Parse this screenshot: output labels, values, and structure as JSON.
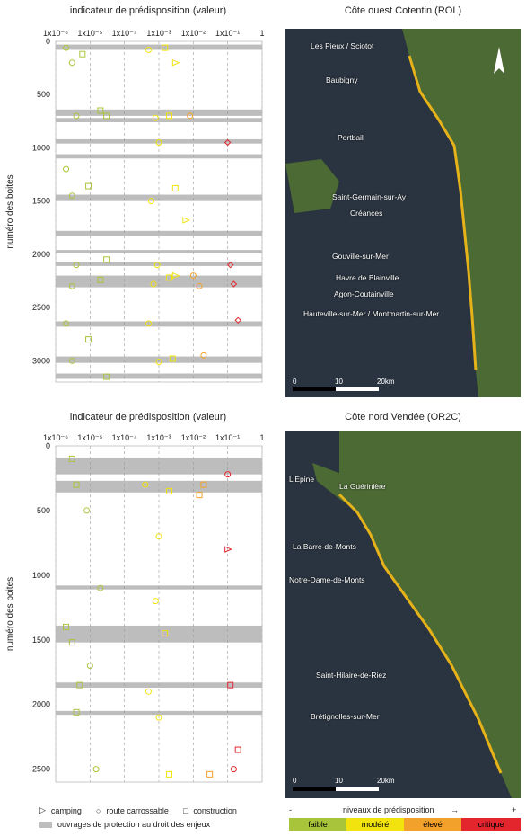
{
  "titles": {
    "chart_top": "indicateur de prédisposition (valeur)",
    "map_top": "Côte ouest Cotentin (ROL)",
    "chart_bottom": "indicateur de prédisposition (valeur)",
    "map_bottom": "Côte nord Vendée (OR2C)"
  },
  "axis": {
    "ylabel": "numéro des boites",
    "x_ticks": [
      "1x10⁻⁶",
      "1x10⁻⁵",
      "1x10⁻⁴",
      "1x10⁻³",
      "1x10⁻²",
      "1x10⁻¹",
      "1"
    ]
  },
  "chart_data": [
    {
      "type": "scatter",
      "title": "indicateur de prédisposition (valeur)",
      "xscale": "log",
      "xlim": [
        1e-06,
        1
      ],
      "ylim": [
        0,
        3200
      ],
      "y_inverted": true,
      "yticks": [
        0,
        500,
        1000,
        1500,
        2000,
        2500,
        3000
      ],
      "grid": "vertical dashed",
      "protection_bands": [
        [
          30,
          80
        ],
        [
          640,
          700
        ],
        [
          720,
          760
        ],
        [
          920,
          960
        ],
        [
          1060,
          1100
        ],
        [
          1440,
          1500
        ],
        [
          1780,
          1830
        ],
        [
          1960,
          1990
        ],
        [
          2070,
          2110
        ],
        [
          2200,
          2310
        ],
        [
          2630,
          2680
        ],
        [
          2960,
          3020
        ],
        [
          3120,
          3170
        ]
      ],
      "groups": [
        {
          "symbol": "circle",
          "level": "faible",
          "points": [
            [
              2e-06,
              60
            ],
            [
              3e-06,
              200
            ],
            [
              4e-06,
              700
            ],
            [
              2e-06,
              1200
            ],
            [
              3e-06,
              1450
            ],
            [
              4e-06,
              2100
            ],
            [
              3e-06,
              2300
            ],
            [
              2e-06,
              2650
            ],
            [
              3e-06,
              3000
            ]
          ]
        },
        {
          "symbol": "square",
          "level": "faible",
          "points": [
            [
              6e-06,
              120
            ],
            [
              2e-05,
              650
            ],
            [
              3e-05,
              700
            ],
            [
              9e-06,
              1360
            ],
            [
              3e-05,
              2050
            ],
            [
              2e-05,
              2240
            ],
            [
              9e-06,
              2800
            ],
            [
              3e-05,
              3150
            ]
          ]
        },
        {
          "symbol": "circle",
          "level": "modéré",
          "points": [
            [
              0.0005,
              80
            ],
            [
              0.0008,
              720
            ],
            [
              0.001,
              950
            ],
            [
              0.0006,
              1500
            ],
            [
              0.0009,
              2100
            ],
            [
              0.0007,
              2280
            ],
            [
              0.0005,
              2650
            ],
            [
              0.001,
              3010
            ]
          ]
        },
        {
          "symbol": "square",
          "level": "modéré",
          "points": [
            [
              0.0015,
              60
            ],
            [
              0.002,
              700
            ],
            [
              0.003,
              1380
            ],
            [
              0.002,
              2220
            ],
            [
              0.0025,
              2980
            ]
          ]
        },
        {
          "symbol": "circle",
          "level": "élevé",
          "points": [
            [
              0.008,
              700
            ],
            [
              0.01,
              2200
            ],
            [
              0.015,
              2300
            ],
            [
              0.02,
              2950
            ]
          ]
        },
        {
          "symbol": "diamond",
          "level": "critique",
          "points": [
            [
              0.1,
              950
            ],
            [
              0.12,
              2100
            ],
            [
              0.15,
              2280
            ],
            [
              0.2,
              2620
            ]
          ]
        },
        {
          "symbol": "triangle",
          "level": "modéré",
          "points": [
            [
              0.003,
              200
            ],
            [
              0.006,
              1680
            ],
            [
              0.003,
              2200
            ]
          ]
        }
      ]
    },
    {
      "type": "scatter",
      "title": "indicateur de prédisposition (valeur)",
      "xscale": "log",
      "xlim": [
        1e-06,
        1
      ],
      "ylim": [
        0,
        2600
      ],
      "y_inverted": true,
      "yticks": [
        0,
        500,
        1000,
        1500,
        2000,
        2500
      ],
      "grid": "vertical dashed",
      "protection_bands": [
        [
          90,
          220
        ],
        [
          270,
          360
        ],
        [
          1080,
          1110
        ],
        [
          1390,
          1520
        ],
        [
          1830,
          1870
        ],
        [
          2050,
          2080
        ]
      ],
      "groups": [
        {
          "symbol": "square",
          "level": "faible",
          "points": [
            [
              3e-06,
              100
            ],
            [
              4e-06,
              300
            ],
            [
              2e-06,
              1400
            ],
            [
              3e-06,
              1520
            ],
            [
              5e-06,
              1850
            ],
            [
              4e-06,
              2060
            ]
          ]
        },
        {
          "symbol": "circle",
          "level": "faible",
          "points": [
            [
              8e-06,
              500
            ],
            [
              2e-05,
              1100
            ],
            [
              1e-05,
              1700
            ],
            [
              1.5e-05,
              2500
            ]
          ]
        },
        {
          "symbol": "circle",
          "level": "modéré",
          "points": [
            [
              0.0004,
              300
            ],
            [
              0.001,
              700
            ],
            [
              0.0008,
              1200
            ],
            [
              0.0005,
              1900
            ],
            [
              0.001,
              2100
            ]
          ]
        },
        {
          "symbol": "square",
          "level": "modéré",
          "points": [
            [
              0.002,
              350
            ],
            [
              0.0015,
              1450
            ],
            [
              0.002,
              2540
            ]
          ]
        },
        {
          "symbol": "square",
          "level": "élevé",
          "points": [
            [
              0.02,
              300
            ],
            [
              0.015,
              380
            ],
            [
              0.03,
              2540
            ]
          ]
        },
        {
          "symbol": "circle",
          "level": "critique",
          "points": [
            [
              0.1,
              220
            ],
            [
              0.15,
              2500
            ]
          ]
        },
        {
          "symbol": "square",
          "level": "critique",
          "points": [
            [
              0.12,
              1850
            ],
            [
              0.2,
              2350
            ]
          ]
        },
        {
          "symbol": "triangle",
          "level": "critique",
          "points": [
            [
              0.1,
              800
            ]
          ]
        }
      ]
    }
  ],
  "maps": {
    "top_places": [
      "Les Pieux / Sciotot",
      "Baubigny",
      "Portbail",
      "Saint-Germain-sur-Ay",
      "Créances",
      "Gouville-sur-Mer",
      "Havre de Blainville",
      "Agon-Coutainville",
      "Hauteville-sur-Mer / Montmartin-sur-Mer"
    ],
    "bottom_places": [
      "L'Epine",
      "La Guérinière",
      "La Barre-de-Monts",
      "Notre-Dame-de-Monts",
      "Saint-Hilaire-de-Riez",
      "Brétignolles-sur-Mer"
    ],
    "scale": {
      "zero": "0",
      "mid": "10",
      "end": "20km"
    },
    "north_icon": "north-arrow-icon"
  },
  "legend": {
    "camping": "camping",
    "route": "route carrossable",
    "construction": "construction",
    "ouvrages": "ouvrages de protection au droit des enjeux",
    "niveaux_title": "niveaux de prédisposition",
    "minus": "-",
    "plus": "+",
    "levels": [
      "faible",
      "modéré",
      "élevé",
      "critique"
    ],
    "colors": {
      "faible": "#a8c43a",
      "modéré": "#f2e30f",
      "élevé": "#f2a22a",
      "critique": "#e3262d",
      "band": "#bdbdbd",
      "sea": "#2a3440",
      "land": "#3f5a2c"
    }
  }
}
